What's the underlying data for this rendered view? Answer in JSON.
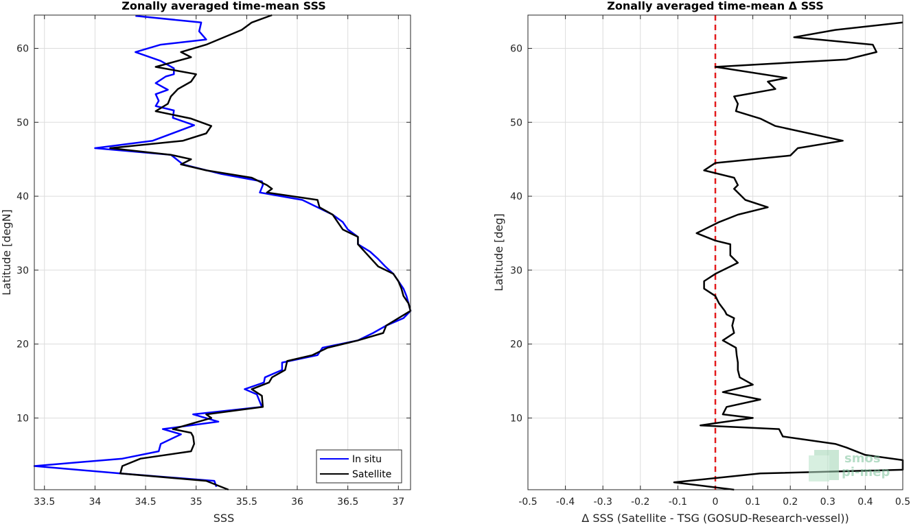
{
  "chart_data": [
    {
      "type": "line",
      "title": "Zonally averaged time-mean SSS",
      "xlabel": "SSS",
      "ylabel": "Latitude [degN]",
      "xlim": [
        33.4,
        37.12
      ],
      "ylim": [
        0.3,
        64.5
      ],
      "xticks": [
        "33.5",
        "34",
        "34.5",
        "35",
        "35.5",
        "36",
        "36.5",
        "37"
      ],
      "xtick_values": [
        33.5,
        34,
        34.5,
        35,
        35.5,
        36,
        36.5,
        37
      ],
      "yticks": [
        "10",
        "20",
        "30",
        "40",
        "50",
        "60"
      ],
      "ytick_values": [
        10,
        20,
        30,
        40,
        50,
        60
      ],
      "grid": true,
      "legend_position": "bottom-right",
      "series": [
        {
          "name": "In situ",
          "color": "#0000ff",
          "points": [
            [
              34.4,
              64.4
            ],
            [
              35.05,
              63.5
            ],
            [
              35.03,
              62.3
            ],
            [
              35.1,
              61.2
            ],
            [
              34.65,
              60.5
            ],
            [
              34.4,
              59.5
            ],
            [
              34.65,
              58.3
            ],
            [
              34.78,
              57.3
            ],
            [
              34.78,
              56.5
            ],
            [
              34.7,
              56.2
            ],
            [
              34.6,
              55.3
            ],
            [
              34.72,
              54.4
            ],
            [
              34.6,
              53.8
            ],
            [
              34.63,
              52.9
            ],
            [
              34.6,
              52.2
            ],
            [
              34.78,
              51.6
            ],
            [
              34.77,
              50.6
            ],
            [
              34.98,
              49.6
            ],
            [
              34.57,
              47.5
            ],
            [
              34.0,
              46.5
            ],
            [
              34.75,
              45.6
            ],
            [
              34.87,
              44.3
            ],
            [
              35.25,
              43.0
            ],
            [
              35.65,
              42.0
            ],
            [
              35.66,
              41.5
            ],
            [
              35.63,
              40.5
            ],
            [
              36.05,
              39.5
            ],
            [
              36.2,
              38.5
            ],
            [
              36.35,
              37.5
            ],
            [
              36.45,
              36.5
            ],
            [
              36.5,
              35.5
            ],
            [
              36.6,
              34.5
            ],
            [
              36.6,
              33.5
            ],
            [
              36.72,
              32.5
            ],
            [
              36.8,
              31.5
            ],
            [
              36.87,
              30.5
            ],
            [
              36.95,
              29.5
            ],
            [
              37.0,
              28.5
            ],
            [
              37.05,
              27.5
            ],
            [
              37.08,
              26.5
            ],
            [
              37.1,
              25.5
            ],
            [
              37.12,
              24.5
            ],
            [
              37.05,
              23.5
            ],
            [
              36.88,
              22.5
            ],
            [
              36.75,
              21.5
            ],
            [
              36.6,
              20.5
            ],
            [
              36.25,
              19.5
            ],
            [
              36.2,
              18.5
            ],
            [
              35.85,
              17.5
            ],
            [
              35.85,
              16.5
            ],
            [
              35.68,
              15.5
            ],
            [
              35.67,
              14.8
            ],
            [
              35.48,
              13.9
            ],
            [
              35.6,
              13.2
            ],
            [
              35.65,
              11.5
            ],
            [
              34.97,
              10.5
            ],
            [
              35.22,
              9.5
            ],
            [
              34.67,
              8.5
            ],
            [
              34.85,
              7.8
            ],
            [
              34.65,
              6.5
            ],
            [
              34.63,
              5.5
            ],
            [
              34.27,
              4.5
            ],
            [
              33.4,
              3.5
            ],
            [
              34.25,
              2.5
            ],
            [
              35.18,
              1.5
            ],
            [
              35.2,
              0.7
            ]
          ]
        },
        {
          "name": "Satellite",
          "color": "#000000",
          "points": [
            [
              35.75,
              64.5
            ],
            [
              35.55,
              63.5
            ],
            [
              35.45,
              62.5
            ],
            [
              35.1,
              60.5
            ],
            [
              34.85,
              59.5
            ],
            [
              34.95,
              58.8
            ],
            [
              34.6,
              57.5
            ],
            [
              35.0,
              56.5
            ],
            [
              34.95,
              55.5
            ],
            [
              34.82,
              54.5
            ],
            [
              34.75,
              53.5
            ],
            [
              34.72,
              52.5
            ],
            [
              34.6,
              51.5
            ],
            [
              34.95,
              50.5
            ],
            [
              35.15,
              49.5
            ],
            [
              35.1,
              48.5
            ],
            [
              34.87,
              47.5
            ],
            [
              34.15,
              46.5
            ],
            [
              34.75,
              45.6
            ],
            [
              34.95,
              45.0
            ],
            [
              34.85,
              44.3
            ],
            [
              35.1,
              43.5
            ],
            [
              35.55,
              42.5
            ],
            [
              35.7,
              41.5
            ],
            [
              35.75,
              41.0
            ],
            [
              35.7,
              40.5
            ],
            [
              36.2,
              39.5
            ],
            [
              36.22,
              38.5
            ],
            [
              36.35,
              37.5
            ],
            [
              36.4,
              36.5
            ],
            [
              36.45,
              35.5
            ],
            [
              36.6,
              34.5
            ],
            [
              36.6,
              33.5
            ],
            [
              36.7,
              32.0
            ],
            [
              36.8,
              30.5
            ],
            [
              36.95,
              29.5
            ],
            [
              37.0,
              28.5
            ],
            [
              37.03,
              27.5
            ],
            [
              37.05,
              26.5
            ],
            [
              37.1,
              25.5
            ],
            [
              37.12,
              24.5
            ],
            [
              37.0,
              23.5
            ],
            [
              36.88,
              22.5
            ],
            [
              36.85,
              21.5
            ],
            [
              36.6,
              20.5
            ],
            [
              36.3,
              19.5
            ],
            [
              36.15,
              18.5
            ],
            [
              35.9,
              17.7
            ],
            [
              35.88,
              16.5
            ],
            [
              35.75,
              15.5
            ],
            [
              35.72,
              14.8
            ],
            [
              35.55,
              13.9
            ],
            [
              35.65,
              13.0
            ],
            [
              35.66,
              11.5
            ],
            [
              35.1,
              10.5
            ],
            [
              35.15,
              10.0
            ],
            [
              34.77,
              8.5
            ],
            [
              34.95,
              8.0
            ],
            [
              34.97,
              7.5
            ],
            [
              34.98,
              6.5
            ],
            [
              34.95,
              5.5
            ],
            [
              34.45,
              4.5
            ],
            [
              34.27,
              3.5
            ],
            [
              34.25,
              2.5
            ],
            [
              35.1,
              1.5
            ],
            [
              35.32,
              0.3
            ]
          ]
        }
      ]
    },
    {
      "type": "line",
      "title": "Zonally averaged time-mean Δ SSS",
      "xlabel": "Δ SSS (Satellite - TSG (GOSUD-Research-vessel))",
      "ylabel": "Latitude [deg]",
      "xlim": [
        -0.5,
        0.5
      ],
      "ylim": [
        0.3,
        64.5
      ],
      "xticks": [
        "-0.5",
        "-0.4",
        "-0.3",
        "-0.2",
        "-0.1",
        "0",
        "0.1",
        "0.2",
        "0.3",
        "0.4",
        "0.5"
      ],
      "xtick_values": [
        -0.5,
        -0.4,
        -0.3,
        -0.2,
        -0.1,
        0,
        0.1,
        0.2,
        0.3,
        0.4,
        0.5
      ],
      "yticks": [
        "10",
        "20",
        "30",
        "40",
        "50",
        "60"
      ],
      "ytick_values": [
        10,
        20,
        30,
        40,
        50,
        60
      ],
      "grid": true,
      "reference_line": {
        "x": 0,
        "color": "#e31a1c",
        "style": "dashed"
      },
      "series": [
        {
          "color": "#000000",
          "points": [
            [
              0.5,
              63.5
            ],
            [
              0.32,
              62.5
            ],
            [
              0.21,
              61.5
            ],
            [
              0.42,
              60.5
            ],
            [
              0.43,
              59.5
            ],
            [
              0.35,
              58.5
            ],
            [
              0.0,
              57.5
            ],
            [
              0.19,
              56.0
            ],
            [
              0.14,
              55.5
            ],
            [
              0.16,
              54.5
            ],
            [
              0.05,
              53.5
            ],
            [
              0.06,
              52.5
            ],
            [
              0.055,
              51.5
            ],
            [
              0.12,
              50.5
            ],
            [
              0.16,
              49.5
            ],
            [
              0.34,
              47.5
            ],
            [
              0.22,
              46.5
            ],
            [
              0.2,
              45.5
            ],
            [
              0.0,
              44.5
            ],
            [
              -0.03,
              43.5
            ],
            [
              0.05,
              42.5
            ],
            [
              0.06,
              41.5
            ],
            [
              0.05,
              41.0
            ],
            [
              0.08,
              39.5
            ],
            [
              0.14,
              38.5
            ],
            [
              0.06,
              37.5
            ],
            [
              0.01,
              36.5
            ],
            [
              -0.05,
              35.0
            ],
            [
              0.0,
              34.0
            ],
            [
              0.04,
              33.5
            ],
            [
              0.04,
              32.0
            ],
            [
              0.06,
              31.0
            ],
            [
              0.0,
              29.5
            ],
            [
              -0.03,
              28.5
            ],
            [
              -0.03,
              27.5
            ],
            [
              0.0,
              26.5
            ],
            [
              0.01,
              25.5
            ],
            [
              0.025,
              24.5
            ],
            [
              0.03,
              24.0
            ],
            [
              0.05,
              23.5
            ],
            [
              0.045,
              22.5
            ],
            [
              0.05,
              21.5
            ],
            [
              0.02,
              20.5
            ],
            [
              0.055,
              19.5
            ],
            [
              0.057,
              18.5
            ],
            [
              0.06,
              17.5
            ],
            [
              0.06,
              16.5
            ],
            [
              0.065,
              15.5
            ],
            [
              0.1,
              14.5
            ],
            [
              0.02,
              13.5
            ],
            [
              0.12,
              12.5
            ],
            [
              0.03,
              11.5
            ],
            [
              0.02,
              10.5
            ],
            [
              0.1,
              10.0
            ],
            [
              0.0,
              9.3
            ],
            [
              -0.04,
              9.0
            ],
            [
              0.17,
              8.5
            ],
            [
              0.18,
              7.5
            ],
            [
              0.32,
              6.5
            ],
            [
              0.35,
              6.0
            ],
            [
              0.4,
              5.0
            ],
            [
              0.5,
              4.3
            ],
            [
              0.5,
              3.0
            ],
            [
              0.12,
              2.5
            ],
            [
              -0.11,
              1.3
            ],
            [
              0.05,
              0.3
            ]
          ]
        }
      ]
    }
  ]
}
